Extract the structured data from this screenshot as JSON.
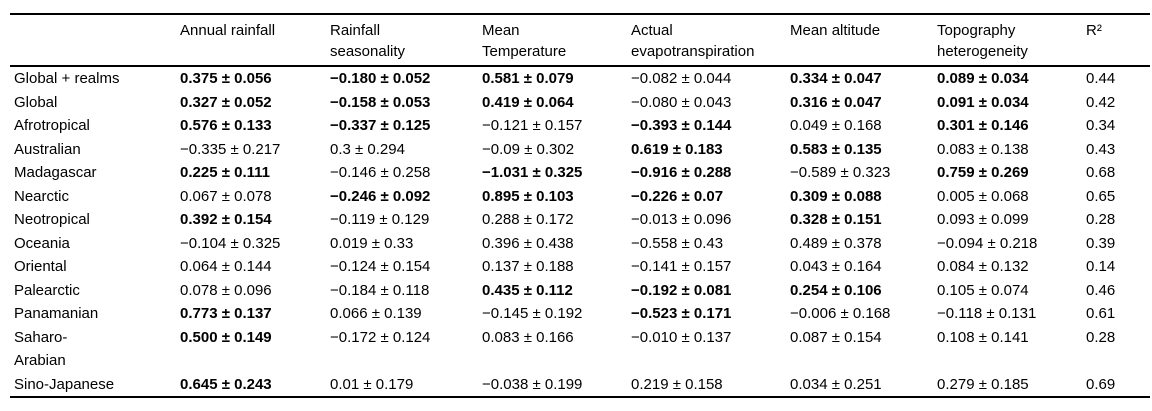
{
  "page": {
    "background_color": "#ffffff",
    "text_color": "#000000"
  },
  "table": {
    "col_headers": [
      "",
      "Annual rainfall",
      "Rainfall\nseasonality",
      "Mean\nTemperature",
      "Actual\nevapotranspiration",
      "Mean altitude",
      "Topography\nheterogeneity",
      "R²"
    ],
    "rows": [
      {
        "label": "Global + realms",
        "values": [
          {
            "text": "0.375 ± 0.056",
            "bold": true
          },
          {
            "text": "−0.180 ± 0.052",
            "bold": true
          },
          {
            "text": "0.581 ± 0.079",
            "bold": true
          },
          {
            "text": "−0.082 ± 0.044",
            "bold": false
          },
          {
            "text": "0.334 ± 0.047",
            "bold": true
          },
          {
            "text": "0.089 ± 0.034",
            "bold": true
          }
        ],
        "r2": "0.44"
      },
      {
        "label": "Global",
        "values": [
          {
            "text": "0.327 ± 0.052",
            "bold": true
          },
          {
            "text": "−0.158 ± 0.053",
            "bold": true
          },
          {
            "text": "0.419 ± 0.064",
            "bold": true
          },
          {
            "text": "−0.080 ± 0.043",
            "bold": false
          },
          {
            "text": "0.316 ± 0.047",
            "bold": true
          },
          {
            "text": "0.091 ± 0.034",
            "bold": true
          }
        ],
        "r2": "0.42"
      },
      {
        "label": "Afrotropical",
        "values": [
          {
            "text": "0.576 ± 0.133",
            "bold": true
          },
          {
            "text": "−0.337 ± 0.125",
            "bold": true
          },
          {
            "text": "−0.121 ± 0.157",
            "bold": false
          },
          {
            "text": "−0.393 ± 0.144",
            "bold": true
          },
          {
            "text": "0.049 ± 0.168",
            "bold": false
          },
          {
            "text": "0.301 ± 0.146",
            "bold": true
          }
        ],
        "r2": "0.34"
      },
      {
        "label": "Australian",
        "values": [
          {
            "text": "−0.335 ± 0.217",
            "bold": false
          },
          {
            "text": "0.3 ± 0.294",
            "bold": false
          },
          {
            "text": "−0.09 ± 0.302",
            "bold": false
          },
          {
            "text": "0.619 ± 0.183",
            "bold": true
          },
          {
            "text": "0.583 ± 0.135",
            "bold": true
          },
          {
            "text": "0.083 ± 0.138",
            "bold": false
          }
        ],
        "r2": "0.43"
      },
      {
        "label": "Madagascar",
        "values": [
          {
            "text": "0.225 ± 0.111",
            "bold": true
          },
          {
            "text": "−0.146 ± 0.258",
            "bold": false
          },
          {
            "text": "−1.031 ± 0.325",
            "bold": true
          },
          {
            "text": "−0.916 ± 0.288",
            "bold": true
          },
          {
            "text": "−0.589 ± 0.323",
            "bold": false
          },
          {
            "text": "0.759 ± 0.269",
            "bold": true
          }
        ],
        "r2": "0.68"
      },
      {
        "label": "Nearctic",
        "values": [
          {
            "text": "0.067 ± 0.078",
            "bold": false
          },
          {
            "text": "−0.246 ± 0.092",
            "bold": true
          },
          {
            "text": "0.895 ± 0.103",
            "bold": true
          },
          {
            "text": "−0.226 ± 0.07",
            "bold": true
          },
          {
            "text": "0.309 ± 0.088",
            "bold": true
          },
          {
            "text": "0.005 ± 0.068",
            "bold": false
          }
        ],
        "r2": "0.65"
      },
      {
        "label": "Neotropical",
        "values": [
          {
            "text": "0.392 ± 0.154",
            "bold": true
          },
          {
            "text": "−0.119 ± 0.129",
            "bold": false
          },
          {
            "text": "0.288 ± 0.172",
            "bold": false
          },
          {
            "text": "−0.013 ± 0.096",
            "bold": false
          },
          {
            "text": "0.328 ± 0.151",
            "bold": true
          },
          {
            "text": "0.093 ± 0.099",
            "bold": false
          }
        ],
        "r2": "0.28"
      },
      {
        "label": "Oceania",
        "values": [
          {
            "text": "−0.104 ± 0.325",
            "bold": false
          },
          {
            "text": "0.019 ± 0.33",
            "bold": false
          },
          {
            "text": "0.396 ± 0.438",
            "bold": false
          },
          {
            "text": "−0.558 ± 0.43",
            "bold": false
          },
          {
            "text": "0.489 ± 0.378",
            "bold": false
          },
          {
            "text": "−0.094 ± 0.218",
            "bold": false
          }
        ],
        "r2": "0.39"
      },
      {
        "label": "Oriental",
        "values": [
          {
            "text": "0.064 ± 0.144",
            "bold": false
          },
          {
            "text": "−0.124 ± 0.154",
            "bold": false
          },
          {
            "text": "0.137 ± 0.188",
            "bold": false
          },
          {
            "text": "−0.141 ± 0.157",
            "bold": false
          },
          {
            "text": "0.043 ± 0.164",
            "bold": false
          },
          {
            "text": "0.084 ± 0.132",
            "bold": false
          }
        ],
        "r2": "0.14"
      },
      {
        "label": "Palearctic",
        "values": [
          {
            "text": "0.078 ± 0.096",
            "bold": false
          },
          {
            "text": "−0.184 ± 0.118",
            "bold": false
          },
          {
            "text": "0.435 ± 0.112",
            "bold": true
          },
          {
            "text": "−0.192 ± 0.081",
            "bold": true
          },
          {
            "text": "0.254 ± 0.106",
            "bold": true
          },
          {
            "text": "0.105 ± 0.074",
            "bold": false
          }
        ],
        "r2": "0.46"
      },
      {
        "label": "Panamanian",
        "values": [
          {
            "text": "0.773 ± 0.137",
            "bold": true
          },
          {
            "text": "0.066 ± 0.139",
            "bold": false
          },
          {
            "text": "−0.145 ± 0.192",
            "bold": false
          },
          {
            "text": "−0.523 ± 0.171",
            "bold": true
          },
          {
            "text": "−0.006 ± 0.168",
            "bold": false
          },
          {
            "text": "−0.118 ± 0.131",
            "bold": false
          }
        ],
        "r2": "0.61"
      },
      {
        "label": "Saharo-\nArabian",
        "values": [
          {
            "text": "0.500 ± 0.149",
            "bold": true
          },
          {
            "text": "−0.172 ± 0.124",
            "bold": false
          },
          {
            "text": "0.083 ± 0.166",
            "bold": false
          },
          {
            "text": "−0.010 ± 0.137",
            "bold": false
          },
          {
            "text": "0.087 ± 0.154",
            "bold": false
          },
          {
            "text": "0.108 ± 0.141",
            "bold": false
          }
        ],
        "r2": "0.28"
      },
      {
        "label": "Sino-Japanese",
        "values": [
          {
            "text": "0.645 ± 0.243",
            "bold": true
          },
          {
            "text": "0.01 ± 0.179",
            "bold": false
          },
          {
            "text": "−0.038 ± 0.199",
            "bold": false
          },
          {
            "text": "0.219 ± 0.158",
            "bold": false
          },
          {
            "text": "0.034 ± 0.251",
            "bold": false
          },
          {
            "text": "0.279 ± 0.185",
            "bold": false
          }
        ],
        "r2": "0.69"
      }
    ]
  }
}
